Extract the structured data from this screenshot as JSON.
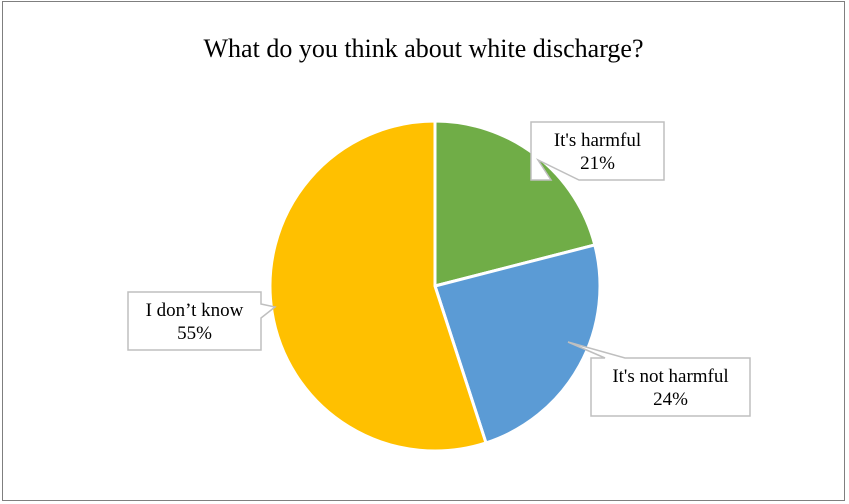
{
  "chart_data": {
    "type": "pie",
    "title": "What do you think about white discharge?",
    "slices": [
      {
        "label": "It's harmful",
        "value": 21,
        "value_label": "21%",
        "color": "#70ad47"
      },
      {
        "label": "It's not harmful",
        "value": 24,
        "value_label": "24%",
        "color": "#5b9bd5"
      },
      {
        "label": "I don’t know",
        "value": 55,
        "value_label": "55%",
        "color": "#ffc000"
      }
    ],
    "start_angle": "12 o'clock, clockwise",
    "legend": "none",
    "data_labels": "callouts with category name and percentage"
  }
}
